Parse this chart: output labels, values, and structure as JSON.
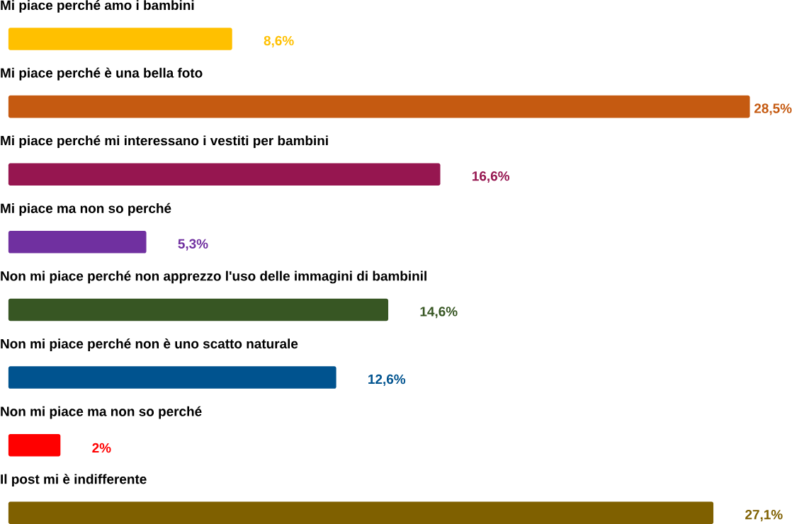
{
  "chart_data": {
    "type": "bar",
    "orientation": "horizontal",
    "categories": [
      "Mi piace perché amo i bambini",
      "Mi piace perché è una bella foto",
      "Mi piace perché mi interessano i vestiti per bambini",
      "Mi piace ma non so perché",
      "Non mi piace perché non apprezzo l'uso delle immagini di bambinil",
      "Non mi piace perché non è uno scatto naturale",
      "Non mi piace ma non so perché",
      "Il post mi è indifferente"
    ],
    "values": [
      8.6,
      28.5,
      16.6,
      5.3,
      14.6,
      12.6,
      2,
      27.1
    ],
    "colors": [
      "#ffc000",
      "#c55a11",
      "#961650",
      "#7030a0",
      "#375623",
      "#00538f",
      "#ff0000",
      "#7f6000"
    ],
    "value_labels": [
      "8,6%",
      "28,5%",
      "16,6%",
      "5,3%",
      "14,6%",
      "12,6%",
      "2%",
      "27,1%"
    ]
  }
}
